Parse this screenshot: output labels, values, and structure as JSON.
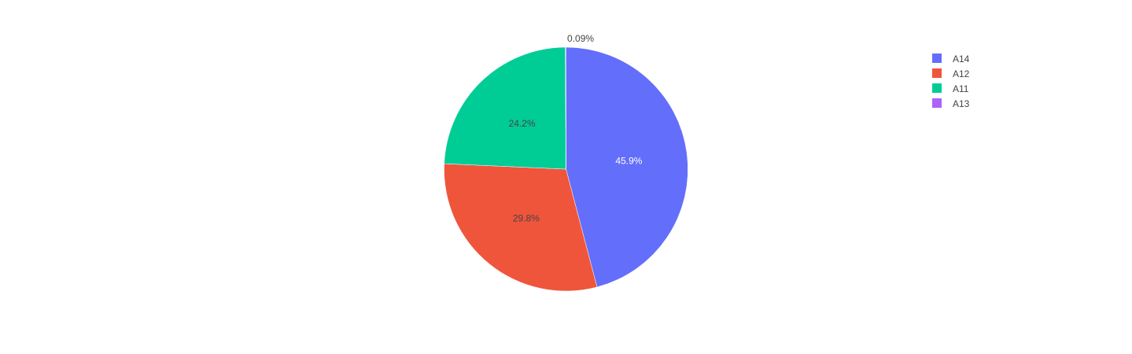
{
  "chart_data": {
    "type": "pie",
    "title": "",
    "legend_position": "top-right",
    "labels": [
      "A14",
      "A12",
      "A11",
      "A13"
    ],
    "values": [
      45.9,
      29.8,
      24.2,
      0.09
    ],
    "display_labels": [
      "45.9%",
      "29.8%",
      "24.2%",
      "0.09%"
    ],
    "colors": [
      "#636efa",
      "#ef553b",
      "#00cc96",
      "#ab63fa"
    ],
    "label_colors": [
      "#ffffff",
      "#444444",
      "#444444",
      "#444444"
    ],
    "direction": "clockwise",
    "start_angle_deg": 90
  }
}
